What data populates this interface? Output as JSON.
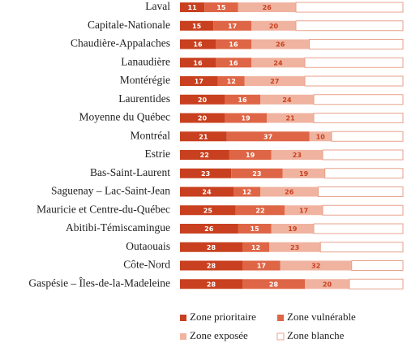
{
  "chart_data": {
    "type": "stacked-hbar",
    "categories": [
      "Laval",
      "Capitale-Nationale",
      "Chaudière-Appalaches",
      "Lanaudière",
      "Montérégie",
      "Laurentides",
      "Moyenne du Québec",
      "Montréal",
      "Estrie",
      "Bas-Saint-Laurent",
      "Saguenay – Lac-Saint-Jean",
      "Mauricie et Centre-du-Québec",
      "Abitibi-Témiscamingue",
      "Outaouais",
      "Côte-Nord",
      "Gaspésie – Îles-de-la-Madeleine"
    ],
    "xlim": [
      0,
      100
    ],
    "series": [
      {
        "name": "Zone prioritaire",
        "color": "#c8401f",
        "text_color": "#ffffff",
        "show_values": true,
        "values": [
          11,
          15,
          16,
          16,
          17,
          20,
          20,
          21,
          22,
          23,
          24,
          25,
          26,
          28,
          28,
          28
        ]
      },
      {
        "name": "Zone vulnérable",
        "color": "#de6646",
        "text_color": "#ffffff",
        "show_values": true,
        "values": [
          15,
          17,
          16,
          16,
          12,
          16,
          19,
          37,
          19,
          23,
          12,
          22,
          15,
          12,
          17,
          28
        ]
      },
      {
        "name": "Zone exposée",
        "color": "#f0b3a0",
        "text_color": "#c8401f",
        "show_values": true,
        "values": [
          26,
          20,
          26,
          24,
          27,
          24,
          21,
          10,
          23,
          19,
          26,
          17,
          19,
          23,
          32,
          20
        ]
      },
      {
        "name": "Zone blanche",
        "color": "#ffffff",
        "text_color": "#c8401f",
        "show_values": false,
        "values": [
          48,
          48,
          42,
          44,
          44,
          40,
          40,
          32,
          36,
          35,
          38,
          36,
          40,
          37,
          23,
          24
        ]
      }
    ]
  }
}
